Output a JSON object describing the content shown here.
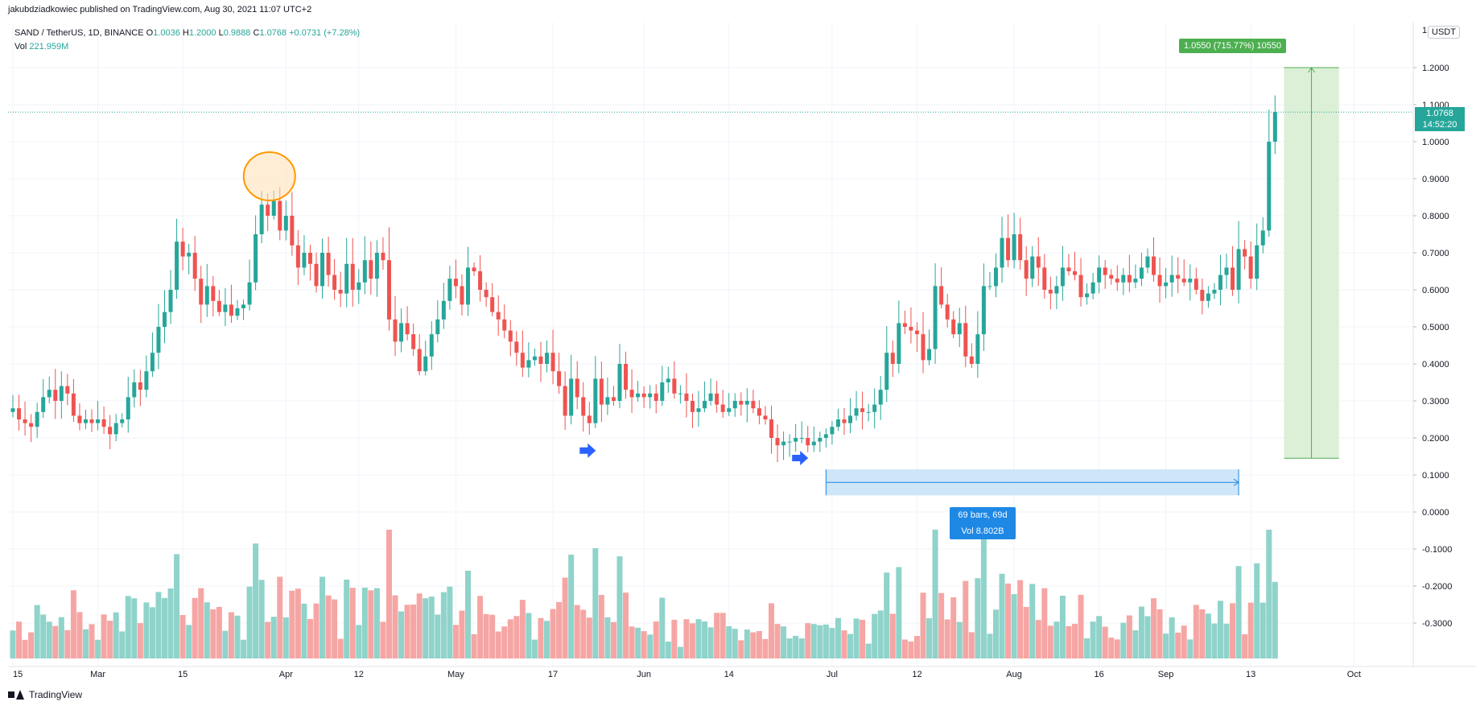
{
  "header": {
    "published": "jakubdziadkowiec published on TradingView.com, Aug 30, 2021 11:07 UTC+2"
  },
  "legend": {
    "symbol": "SAND / TetherUS, 1D, BINANCE",
    "o_label": "O",
    "o_value": "1.0036",
    "h_label": "H",
    "h_value": "1.2000",
    "l_label": "L",
    "l_value": "0.9888",
    "c_label": "C",
    "c_value": "1.0768",
    "change": "+0.0731 (+7.28%)",
    "vol_label": "Vol",
    "vol_value": "221.959M"
  },
  "axis": {
    "currency": "USDT",
    "current_price": "1.0768",
    "countdown": "14:52:20",
    "price_labels": [
      "1.2000",
      "1.1000",
      "1.0000",
      "0.9000",
      "0.8000",
      "0.7000",
      "0.6000",
      "0.5000",
      "0.4000",
      "0.3000",
      "0.2000",
      "0.1000",
      "0.0000",
      "-0.1000",
      "-0.2000",
      "-0.3000"
    ],
    "price_values": [
      1.2,
      1.1,
      1.0,
      0.9,
      0.8,
      0.7,
      0.6,
      0.5,
      0.4,
      0.3,
      0.2,
      0.1,
      0.0,
      -0.1,
      -0.2,
      -0.3
    ],
    "top_label": "1",
    "time_labels": [
      "15",
      "Mar",
      "15",
      "Apr",
      "12",
      "May",
      "17",
      "Jun",
      "14",
      "Jul",
      "12",
      "Aug",
      "16",
      "Sep",
      "13",
      "Oct"
    ],
    "time_bar_index": [
      0,
      14,
      28,
      45,
      57,
      73,
      89,
      104,
      118,
      135,
      149,
      165,
      179,
      190,
      204,
      221
    ]
  },
  "measure": {
    "line1": "69 bars, 69d",
    "line2": "Vol 8.802B",
    "start_bar": 134,
    "end_bar": 202,
    "price_top": 0.115,
    "price_bottom": 0.045
  },
  "gain": {
    "label": "1.0550 (715.77%) 10550",
    "price_from": 0.145,
    "price_to": 1.2,
    "bar_from": 210,
    "bar_to": 218
  },
  "annotations": {
    "circle_bar": 44,
    "circle_price": 0.9,
    "arrows": [
      {
        "bar": 95,
        "price": 0.17
      },
      {
        "bar": 130,
        "price": 0.15
      }
    ]
  },
  "colors": {
    "up": "#26a69a",
    "down": "#ef5350",
    "vol_up": "#8fd3ca",
    "vol_down": "#f5a6a4",
    "grid": "#f0f3fa",
    "gain_fill": "#dcefd7",
    "gain_line": "#4caf50",
    "measure_fill": "#cfe5f8",
    "measure_line": "#1e88e5",
    "circle": "#ff9800",
    "arrow": "#2962ff"
  },
  "footer": {
    "brand": "TradingView"
  },
  "chart_data": {
    "type": "candlestick",
    "title": "SAND / TetherUS, 1D, BINANCE",
    "xlabel": "",
    "ylabel": "USDT",
    "ylim": [
      -0.35,
      1.27
    ],
    "first_bar": "2021-02-13",
    "last_bar": "2021-08-30",
    "bars_per_day": 1,
    "close": [
      0.28,
      0.25,
      0.24,
      0.23,
      0.27,
      0.31,
      0.33,
      0.3,
      0.34,
      0.32,
      0.26,
      0.24,
      0.25,
      0.24,
      0.25,
      0.23,
      0.21,
      0.24,
      0.25,
      0.31,
      0.35,
      0.33,
      0.38,
      0.43,
      0.5,
      0.54,
      0.6,
      0.73,
      0.69,
      0.7,
      0.63,
      0.56,
      0.61,
      0.57,
      0.54,
      0.56,
      0.53,
      0.55,
      0.56,
      0.62,
      0.75,
      0.83,
      0.8,
      0.84,
      0.76,
      0.8,
      0.72,
      0.66,
      0.7,
      0.67,
      0.61,
      0.7,
      0.64,
      0.6,
      0.59,
      0.67,
      0.6,
      0.62,
      0.68,
      0.63,
      0.7,
      0.68,
      0.52,
      0.46,
      0.51,
      0.48,
      0.44,
      0.38,
      0.42,
      0.48,
      0.52,
      0.57,
      0.63,
      0.61,
      0.56,
      0.66,
      0.65,
      0.6,
      0.58,
      0.54,
      0.52,
      0.49,
      0.46,
      0.43,
      0.39,
      0.41,
      0.42,
      0.4,
      0.43,
      0.38,
      0.34,
      0.26,
      0.36,
      0.31,
      0.26,
      0.24,
      0.36,
      0.29,
      0.31,
      0.3,
      0.4,
      0.33,
      0.31,
      0.32,
      0.31,
      0.32,
      0.3,
      0.35,
      0.36,
      0.32,
      0.32,
      0.3,
      0.27,
      0.28,
      0.3,
      0.32,
      0.29,
      0.27,
      0.28,
      0.3,
      0.29,
      0.3,
      0.28,
      0.26,
      0.25,
      0.2,
      0.18,
      0.19,
      0.19,
      0.2,
      0.2,
      0.18,
      0.19,
      0.2,
      0.21,
      0.23,
      0.25,
      0.24,
      0.26,
      0.28,
      0.27,
      0.27,
      0.29,
      0.33,
      0.43,
      0.4,
      0.51,
      0.5,
      0.49,
      0.48,
      0.41,
      0.44,
      0.61,
      0.56,
      0.52,
      0.48,
      0.51,
      0.42,
      0.4,
      0.48,
      0.61,
      0.61,
      0.66,
      0.74,
      0.68,
      0.75,
      0.68,
      0.63,
      0.69,
      0.66,
      0.6,
      0.59,
      0.61,
      0.66,
      0.65,
      0.64,
      0.58,
      0.59,
      0.62,
      0.66,
      0.64,
      0.63,
      0.62,
      0.64,
      0.62,
      0.63,
      0.66,
      0.69,
      0.64,
      0.61,
      0.62,
      0.64,
      0.63,
      0.62,
      0.63,
      0.6,
      0.57,
      0.59,
      0.6,
      0.64,
      0.66,
      0.6,
      0.71,
      0.69,
      0.63,
      0.72,
      0.76,
      1.0,
      1.08
    ]
  }
}
